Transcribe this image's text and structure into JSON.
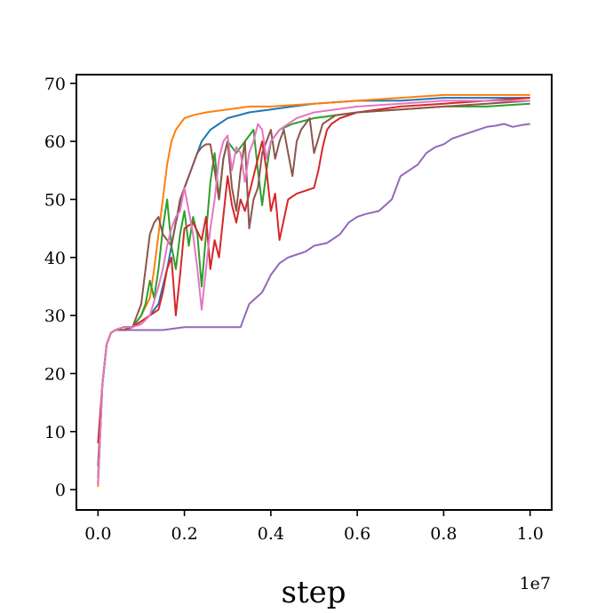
{
  "chart_data": {
    "type": "line",
    "title": "",
    "xlabel": "step",
    "ylabel": "",
    "x_offset_text": "1e7",
    "xlim": [
      -0.05,
      1.05
    ],
    "ylim": [
      -3.5,
      71.5
    ],
    "x_ticks": [
      0.0,
      0.2,
      0.4,
      0.6,
      0.8,
      1.0
    ],
    "x_tick_labels": [
      "0.0",
      "0.2",
      "0.4",
      "0.6",
      "0.8",
      "1.0"
    ],
    "y_ticks": [
      0,
      10,
      20,
      30,
      40,
      50,
      60,
      70
    ],
    "y_tick_labels": [
      "0",
      "10",
      "20",
      "30",
      "40",
      "50",
      "60",
      "70"
    ],
    "grid": false,
    "legend": "none",
    "series": [
      {
        "color": "#1f77b4",
        "x": [
          0.0,
          0.01,
          0.02,
          0.03,
          0.04,
          0.06,
          0.08,
          0.1,
          0.12,
          0.14,
          0.16,
          0.18,
          0.2,
          0.22,
          0.24,
          0.26,
          0.28,
          0.3,
          0.35,
          0.4,
          0.45,
          0.5,
          0.6,
          0.7,
          0.8,
          0.9,
          1.0
        ],
        "y": [
          1,
          18,
          25,
          27,
          27.5,
          28,
          28,
          29,
          30,
          32,
          38,
          46,
          52,
          56,
          60,
          62,
          63,
          64,
          65,
          65.5,
          66,
          66.5,
          67,
          67,
          67.5,
          67.5,
          67.5
        ]
      },
      {
        "color": "#ff7f0e",
        "x": [
          0.0,
          0.01,
          0.02,
          0.03,
          0.04,
          0.06,
          0.08,
          0.1,
          0.12,
          0.13,
          0.14,
          0.15,
          0.16,
          0.17,
          0.18,
          0.19,
          0.2,
          0.22,
          0.25,
          0.3,
          0.35,
          0.4,
          0.5,
          0.6,
          0.7,
          0.8,
          0.9,
          1.0
        ],
        "y": [
          0.5,
          18,
          25,
          27,
          27.5,
          28,
          28,
          30,
          33,
          38,
          44,
          50,
          56,
          60,
          62,
          63,
          64,
          64.5,
          65,
          65.5,
          66,
          66,
          66.5,
          67,
          67.5,
          68,
          68,
          68
        ]
      },
      {
        "color": "#2ca02c",
        "x": [
          0.0,
          0.01,
          0.02,
          0.03,
          0.04,
          0.06,
          0.08,
          0.1,
          0.11,
          0.12,
          0.13,
          0.14,
          0.15,
          0.16,
          0.17,
          0.18,
          0.19,
          0.2,
          0.21,
          0.22,
          0.23,
          0.24,
          0.25,
          0.26,
          0.27,
          0.28,
          0.29,
          0.3,
          0.32,
          0.34,
          0.36,
          0.37,
          0.38,
          0.39,
          0.4,
          0.42,
          0.45,
          0.5,
          0.6,
          0.7,
          0.8,
          0.9,
          1.0
        ],
        "y": [
          2,
          18,
          25,
          27,
          27.5,
          28,
          28,
          30,
          32,
          36,
          33,
          38,
          45,
          50,
          42,
          38,
          44,
          48,
          42,
          47,
          44,
          35,
          44,
          53,
          58,
          50,
          57,
          60,
          58,
          60,
          62,
          55,
          49,
          55,
          60,
          62,
          63,
          64,
          65,
          65.5,
          66,
          66,
          66.5
        ]
      },
      {
        "color": "#d62728",
        "x": [
          0.0,
          0.01,
          0.02,
          0.03,
          0.04,
          0.06,
          0.08,
          0.1,
          0.12,
          0.14,
          0.15,
          0.16,
          0.17,
          0.18,
          0.19,
          0.2,
          0.22,
          0.24,
          0.25,
          0.26,
          0.27,
          0.28,
          0.3,
          0.31,
          0.32,
          0.33,
          0.34,
          0.36,
          0.38,
          0.39,
          0.4,
          0.41,
          0.42,
          0.44,
          0.46,
          0.48,
          0.5,
          0.51,
          0.52,
          0.53,
          0.54,
          0.56,
          0.6,
          0.7,
          0.8,
          0.9,
          1.0
        ],
        "y": [
          8,
          18,
          25,
          27,
          27.5,
          28,
          28,
          29,
          30,
          31,
          34,
          38,
          40,
          30,
          37,
          45,
          46,
          43,
          47,
          38,
          43,
          40,
          54,
          49,
          46,
          50,
          48,
          54,
          60,
          55,
          48,
          51,
          43,
          50,
          51,
          51.5,
          52,
          55,
          59,
          62,
          63,
          64,
          65,
          66,
          66.5,
          67,
          67.5
        ]
      },
      {
        "color": "#9467bd",
        "x": [
          0.0,
          0.01,
          0.02,
          0.03,
          0.04,
          0.06,
          0.08,
          0.1,
          0.15,
          0.2,
          0.25,
          0.3,
          0.33,
          0.35,
          0.38,
          0.4,
          0.42,
          0.44,
          0.46,
          0.48,
          0.5,
          0.53,
          0.56,
          0.58,
          0.6,
          0.62,
          0.65,
          0.68,
          0.7,
          0.72,
          0.74,
          0.76,
          0.78,
          0.8,
          0.82,
          0.84,
          0.86,
          0.88,
          0.9,
          0.92,
          0.94,
          0.96,
          0.98,
          1.0
        ],
        "y": [
          1,
          18,
          25,
          27,
          27.5,
          27.5,
          27.5,
          27.5,
          27.5,
          28,
          28,
          28,
          28,
          32,
          34,
          37,
          39,
          40,
          40.5,
          41,
          42,
          42.5,
          44,
          46,
          47,
          47.5,
          48,
          50,
          54,
          55,
          56,
          58,
          59,
          59.5,
          60.5,
          61,
          61.5,
          62,
          62.5,
          62.7,
          63,
          62.5,
          62.8,
          63
        ]
      },
      {
        "color": "#8c564b",
        "x": [
          0.0,
          0.01,
          0.02,
          0.03,
          0.04,
          0.06,
          0.08,
          0.1,
          0.11,
          0.12,
          0.13,
          0.14,
          0.15,
          0.16,
          0.17,
          0.18,
          0.19,
          0.2,
          0.21,
          0.22,
          0.23,
          0.24,
          0.25,
          0.26,
          0.27,
          0.28,
          0.29,
          0.3,
          0.31,
          0.32,
          0.33,
          0.34,
          0.35,
          0.36,
          0.37,
          0.38,
          0.39,
          0.4,
          0.41,
          0.42,
          0.43,
          0.44,
          0.45,
          0.46,
          0.47,
          0.48,
          0.49,
          0.5,
          0.52,
          0.55,
          0.6,
          0.7,
          0.8,
          0.9,
          1.0
        ],
        "y": [
          4,
          18,
          25,
          27,
          27.5,
          27.5,
          28,
          32,
          38,
          44,
          46,
          47,
          44,
          43,
          42,
          46,
          50,
          52,
          54,
          56,
          58,
          59,
          59.5,
          59.5,
          55,
          50,
          57,
          60,
          52,
          48,
          55,
          60,
          45,
          50,
          52,
          58,
          60,
          62,
          57,
          60,
          62,
          58,
          54,
          60,
          62,
          63,
          64,
          58,
          63,
          64.5,
          65,
          65.5,
          66,
          66.5,
          67
        ]
      },
      {
        "color": "#e377c2",
        "x": [
          0.0,
          0.01,
          0.02,
          0.03,
          0.04,
          0.06,
          0.08,
          0.1,
          0.12,
          0.14,
          0.15,
          0.16,
          0.17,
          0.18,
          0.19,
          0.2,
          0.21,
          0.22,
          0.23,
          0.24,
          0.25,
          0.26,
          0.27,
          0.28,
          0.29,
          0.3,
          0.31,
          0.32,
          0.33,
          0.34,
          0.35,
          0.36,
          0.37,
          0.38,
          0.39,
          0.4,
          0.42,
          0.44,
          0.46,
          0.48,
          0.5,
          0.55,
          0.6,
          0.7,
          0.8,
          0.9,
          1.0
        ],
        "y": [
          1,
          18,
          25,
          27,
          27.5,
          28,
          28,
          28.5,
          30,
          35,
          38,
          42,
          45,
          47,
          48,
          52,
          48,
          44,
          38,
          31,
          38,
          45,
          50,
          57,
          60,
          61,
          55,
          59,
          58,
          53,
          58,
          60,
          63,
          62,
          57,
          60,
          62,
          63,
          64,
          64.5,
          65,
          65.5,
          66,
          66.5,
          67,
          67,
          67
        ]
      }
    ]
  }
}
